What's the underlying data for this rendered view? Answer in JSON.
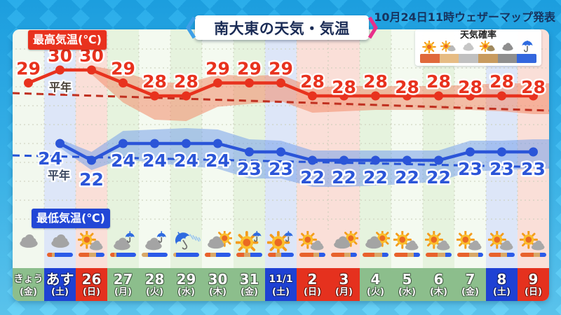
{
  "header": {
    "title": "南大東の天気・気温",
    "issued": "10月24日11時ウェザーマップ発表"
  },
  "labels": {
    "max_temp": "最高気温(℃)",
    "min_temp": "最低気温(℃)",
    "normal": "平年"
  },
  "legend": {
    "title": "天気確率",
    "items": [
      {
        "icon": "sun-icon",
        "swatch": "#E0693B"
      },
      {
        "icon": "sun-cloud-icon",
        "swatch": "#E6BC84"
      },
      {
        "icon": "cloud-light-icon",
        "swatch": "#C0C0C0"
      },
      {
        "icon": "sun-cloud-dark-icon",
        "swatch": "#C89B5F"
      },
      {
        "icon": "cloud-dark-icon",
        "swatch": "#8E8E8E"
      },
      {
        "icon": "umbrella-icon",
        "swatch": "#3366DD"
      }
    ]
  },
  "colors": {
    "max_line": "#E8321E",
    "min_line": "#2B55D8",
    "max_band": "rgba(243,138,105,0.55)",
    "min_band": "rgba(118,160,235,0.55)",
    "max_normal_dash": "#C03020",
    "min_normal_dash": "#2653D6",
    "badge_max": "#E8321E",
    "badge_min": "#2247D6",
    "cell_green": "#8CBE8C",
    "cell_blue": "#1E41D4",
    "cell_red": "#E5311E",
    "bar_sun": "#E8622C",
    "bar_part": "#D8A868",
    "bar_rain": "#2B5BE8"
  },
  "chart_data": {
    "type": "line",
    "title": "南大東の天気・気温",
    "unit": "℃",
    "grid": "dotted",
    "legend_position": "top-right",
    "categories": [
      "きょう(金)",
      "あす(土)",
      "26(日)",
      "27(月)",
      "28(火)",
      "29(水)",
      "30(木)",
      "31(金)",
      "11/1(土)",
      "2(日)",
      "3(月)",
      "4(火)",
      "5(水)",
      "6(木)",
      "7(金)",
      "8(土)",
      "9(日)"
    ],
    "series": [
      {
        "name": "最高気温(℃)",
        "color": "#E8321E",
        "start_category_index": 0,
        "uncertainty_band": true,
        "values": [
          29,
          30,
          30,
          29,
          28,
          28,
          29,
          29,
          29,
          28,
          28,
          28,
          28,
          28,
          28,
          28,
          28
        ]
      },
      {
        "name": "最低気温(℃)",
        "color": "#2B55D8",
        "start_category_index": 1,
        "uncertainty_band": true,
        "values": [
          24,
          22,
          24,
          24,
          24,
          24,
          23,
          23,
          22,
          22,
          22,
          22,
          22,
          23,
          23,
          23
        ]
      }
    ],
    "normal_lines": [
      {
        "name": "平年(最高気温)",
        "style": "dashed",
        "start_value": 28.2,
        "end_value": 26.9
      },
      {
        "name": "平年(最低気温)",
        "style": "dashed",
        "start_value": 22.6,
        "end_value": 21.2
      }
    ]
  },
  "days": [
    {
      "label": "きょう",
      "dow": "(金)",
      "color": "green",
      "stripe": "#F2F8EE",
      "icon": "cloudy"
    },
    {
      "label": "あす",
      "dow": "(土)",
      "color": "blue",
      "stripe": "#DDE6F8",
      "icon": "cloudy",
      "probability": [
        [
          "sun",
          0.18
        ],
        [
          "part",
          0.12
        ],
        [
          "rain",
          0.7
        ]
      ]
    },
    {
      "label": "26",
      "dow": "(日)",
      "color": "red",
      "stripe": "#FADFD8",
      "icon": "sun-cloud",
      "probability": [
        [
          "sun",
          0.4
        ],
        [
          "part",
          0.28
        ],
        [
          "rain",
          0.32
        ]
      ]
    },
    {
      "label": "27",
      "dow": "(月)",
      "color": "green",
      "stripe": "#E6F3DE",
      "icon": "cloud-umbrella",
      "probability": [
        [
          "sun",
          0.15
        ],
        [
          "part",
          0.1
        ],
        [
          "rain",
          0.75
        ]
      ]
    },
    {
      "label": "28",
      "dow": "(火)",
      "color": "green",
      "stripe": "#F4FAF0",
      "icon": "cloud-umbrella",
      "probability": [
        [
          "part",
          0.25
        ],
        [
          "rain",
          0.75
        ]
      ]
    },
    {
      "label": "29",
      "dow": "(水)",
      "color": "green",
      "stripe": "#E6F3DE",
      "icon": "rain",
      "probability": [
        [
          "part",
          0.1
        ],
        [
          "rain",
          0.9
        ]
      ]
    },
    {
      "label": "30",
      "dow": "(木)",
      "color": "green",
      "stripe": "#F4FAF0",
      "icon": "cloud-sun",
      "probability": [
        [
          "sun",
          0.22
        ],
        [
          "part",
          0.22
        ],
        [
          "rain",
          0.56
        ]
      ]
    },
    {
      "label": "31",
      "dow": "(金)",
      "color": "green",
      "stripe": "#E6F3DE",
      "icon": "sun-umbrella",
      "probability": [
        [
          "sun",
          0.3
        ],
        [
          "part",
          0.25
        ],
        [
          "rain",
          0.45
        ]
      ]
    },
    {
      "label": "11/1",
      "dow": "(土)",
      "color": "blue",
      "stripe": "#DDE6F8",
      "icon": "sun-umbrella",
      "probability": [
        [
          "sun",
          0.3
        ],
        [
          "part",
          0.2
        ],
        [
          "rain",
          0.5
        ]
      ]
    },
    {
      "label": "2",
      "dow": "(日)",
      "color": "red",
      "stripe": "#FADFD8",
      "icon": "sun-cloud",
      "probability": [
        [
          "sun",
          0.55
        ],
        [
          "part",
          0.2
        ],
        [
          "rain",
          0.25
        ]
      ]
    },
    {
      "label": "3",
      "dow": "(月)",
      "color": "red",
      "stripe": "#FADFD8",
      "icon": "cloud-sun",
      "probability": [
        [
          "sun",
          0.5
        ],
        [
          "part",
          0.25
        ],
        [
          "rain",
          0.25
        ]
      ]
    },
    {
      "label": "4",
      "dow": "(火)",
      "color": "green",
      "stripe": "#E6F3DE",
      "icon": "cloud-sun",
      "probability": [
        [
          "sun",
          0.45
        ],
        [
          "part",
          0.3
        ],
        [
          "rain",
          0.25
        ]
      ]
    },
    {
      "label": "5",
      "dow": "(水)",
      "color": "green",
      "stripe": "#F4FAF0",
      "icon": "sun-cloud",
      "probability": [
        [
          "sun",
          0.5
        ],
        [
          "part",
          0.25
        ],
        [
          "rain",
          0.25
        ]
      ]
    },
    {
      "label": "6",
      "dow": "(木)",
      "color": "green",
      "stripe": "#E6F3DE",
      "icon": "sun-cloud",
      "probability": [
        [
          "sun",
          0.45
        ],
        [
          "part",
          0.3
        ],
        [
          "rain",
          0.25
        ]
      ]
    },
    {
      "label": "7",
      "dow": "(金)",
      "color": "green",
      "stripe": "#F4FAF0",
      "icon": "sun-cloud",
      "probability": [
        [
          "sun",
          0.45
        ],
        [
          "part",
          0.35
        ],
        [
          "rain",
          0.2
        ]
      ]
    },
    {
      "label": "8",
      "dow": "(土)",
      "color": "blue",
      "stripe": "#DDE6F8",
      "icon": "sun-cloud",
      "probability": [
        [
          "sun",
          0.45
        ],
        [
          "part",
          0.25
        ],
        [
          "rain",
          0.3
        ]
      ]
    },
    {
      "label": "9",
      "dow": "(日)",
      "color": "red",
      "stripe": "#FADFD8",
      "icon": "sun-cloud",
      "probability": [
        [
          "sun",
          0.5
        ],
        [
          "part",
          0.25
        ],
        [
          "rain",
          0.25
        ]
      ]
    }
  ]
}
